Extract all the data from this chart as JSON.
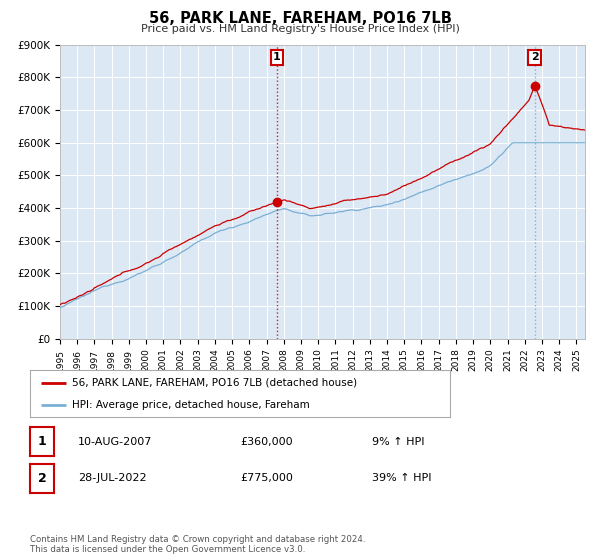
{
  "title": "56, PARK LANE, FAREHAM, PO16 7LB",
  "subtitle": "Price paid vs. HM Land Registry's House Price Index (HPI)",
  "ylim": [
    0,
    900000
  ],
  "xlim_start": 1995.0,
  "xlim_end": 2025.5,
  "fig_bg_color": "#ffffff",
  "plot_bg_color": "#dce9f5",
  "grid_color": "#ffffff",
  "sale1_date": 2007.61,
  "sale1_price": 360000,
  "sale2_date": 2022.57,
  "sale2_price": 775000,
  "hpi_color": "#7bafd4",
  "price_color": "#cc0000",
  "legend_entries": [
    "56, PARK LANE, FAREHAM, PO16 7LB (detached house)",
    "HPI: Average price, detached house, Fareham"
  ],
  "annotation1_label": "1",
  "annotation1_date": "10-AUG-2007",
  "annotation1_price": "£360,000",
  "annotation1_hpi": "9% ↑ HPI",
  "annotation2_label": "2",
  "annotation2_date": "28-JUL-2022",
  "annotation2_price": "£775,000",
  "annotation2_hpi": "39% ↑ HPI",
  "footer": "Contains HM Land Registry data © Crown copyright and database right 2024.\nThis data is licensed under the Open Government Licence v3.0."
}
